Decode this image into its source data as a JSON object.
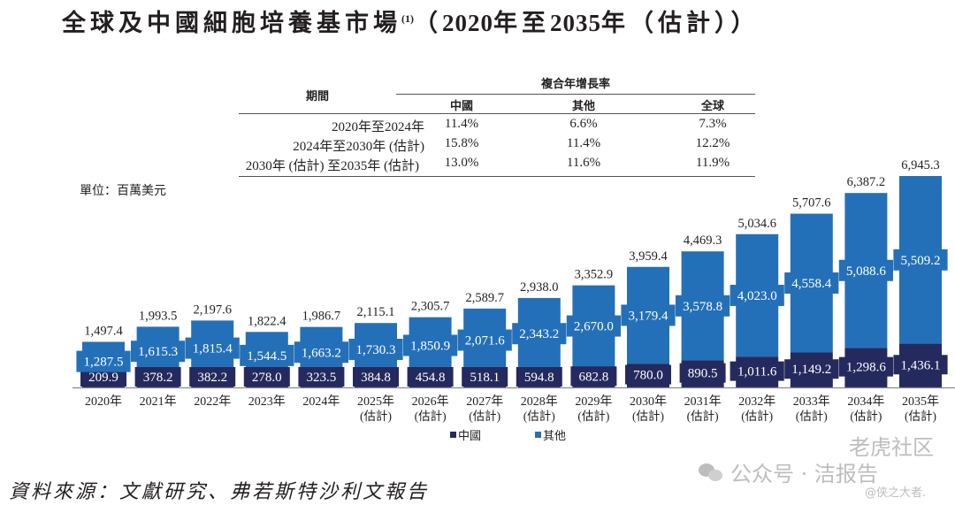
{
  "title": {
    "text_cn": "全球及中國細胞培養基市場",
    "footnote_mark": "(1)",
    "text_range_open": "（",
    "year_start": "2020",
    "mid1": "年至",
    "year_end": "2035",
    "mid2": "年（估計））"
  },
  "cagr_table": {
    "group_header": "複合年增長率",
    "period_header": "期間",
    "columns": [
      "中國",
      "其他",
      "全球"
    ],
    "rows": [
      {
        "period": "2020年至2024年",
        "values": [
          "11.4%",
          "6.6%",
          "7.3%"
        ]
      },
      {
        "period": "2024年至2030年 (估計)",
        "values": [
          "15.8%",
          "11.4%",
          "12.2%"
        ]
      },
      {
        "period": "2030年 (估計) 至2035年 (估計)",
        "values": [
          "13.0%",
          "11.6%",
          "11.9%"
        ]
      }
    ]
  },
  "unit_label": "單位：百萬美元",
  "colors": {
    "china": "#252a5e",
    "other": "#2470b8",
    "text": "#231f20",
    "axis": "#8a8a8a"
  },
  "chart_data": {
    "type": "bar",
    "stacked": true,
    "title": "全球及中國細胞培養基市場(2020年至2035年(估計))",
    "ylabel": "單位：百萬美元",
    "xlabel": "",
    "categories": [
      [
        "2020年",
        ""
      ],
      [
        "2021年",
        ""
      ],
      [
        "2022年",
        ""
      ],
      [
        "2023年",
        ""
      ],
      [
        "2024年",
        ""
      ],
      [
        "2025年",
        "(估計)"
      ],
      [
        "2026年",
        "(估計)"
      ],
      [
        "2027年",
        "(估計)"
      ],
      [
        "2028年",
        "(估計)"
      ],
      [
        "2029年",
        "(估計)"
      ],
      [
        "2030年",
        "(估計)"
      ],
      [
        "2031年",
        "(估計)"
      ],
      [
        "2032年",
        "(估計)"
      ],
      [
        "2033年",
        "(估計)"
      ],
      [
        "2034年",
        "(估計)"
      ],
      [
        "2035年",
        "(估計)"
      ]
    ],
    "series": [
      {
        "name": "中國",
        "color": "#252a5e",
        "values": [
          209.9,
          378.2,
          382.2,
          278.0,
          323.5,
          384.8,
          454.8,
          518.1,
          594.8,
          682.8,
          780.0,
          890.5,
          1011.6,
          1149.2,
          1298.6,
          1436.1
        ],
        "labels": [
          "209.9",
          "378.2",
          "382.2",
          "278.0",
          "323.5",
          "384.8",
          "454.8",
          "518.1",
          "594.8",
          "682.8",
          "780.0",
          "890.5",
          "1,011.6",
          "1,149.2",
          "1,298.6",
          "1,436.1"
        ]
      },
      {
        "name": "其他",
        "color": "#2470b8",
        "values": [
          1287.5,
          1615.3,
          1815.4,
          1544.5,
          1663.2,
          1730.3,
          1850.9,
          2071.6,
          2343.2,
          2670.0,
          3179.4,
          3578.8,
          4023.0,
          4558.4,
          5088.6,
          5509.2
        ],
        "labels": [
          "1,287.5",
          "1,615.3",
          "1,815.4",
          "1,544.5",
          "1,663.2",
          "1,730.3",
          "1,850.9",
          "2,071.6",
          "2,343.2",
          "2,670.0",
          "3,179.4",
          "3,578.8",
          "4,023.0",
          "4,558.4",
          "5,088.6",
          "5,509.2"
        ]
      }
    ],
    "totals": [
      1497.4,
      1993.5,
      2197.6,
      1822.4,
      1986.7,
      2115.1,
      2305.7,
      2589.7,
      2938.0,
      3352.9,
      3959.4,
      4469.3,
      5034.6,
      5707.6,
      6387.2,
      6945.3
    ],
    "total_labels": [
      "1,497.4",
      "1,993.5",
      "2,197.6",
      "1,822.4",
      "1,986.7",
      "2,115.1",
      "2,305.7",
      "2,589.7",
      "2,938.0",
      "3,352.9",
      "3,959.4",
      "4,469.3",
      "5,034.6",
      "5,707.6",
      "6,387.2",
      "6,945.3"
    ],
    "ylim": [
      0,
      7000
    ],
    "grid": false,
    "legend": {
      "position": "bottom-center",
      "entries": [
        "中國",
        "其他"
      ]
    }
  },
  "source": "資料來源：文獻研究、弗若斯特沙利文報告",
  "watermark": {
    "line1": "公众号 · 洁报告",
    "line2": "老虎社区",
    "line3": "@侠之大者."
  }
}
